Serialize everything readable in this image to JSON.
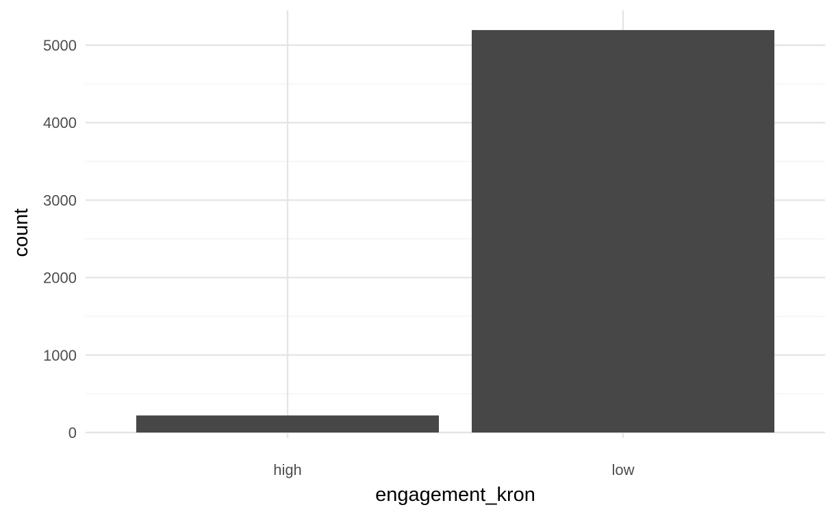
{
  "chart_data": {
    "type": "bar",
    "categories": [
      "high",
      "low"
    ],
    "values": [
      220,
      5195
    ],
    "xlabel": "engagement_kron",
    "ylabel": "count",
    "ylim": [
      0,
      5200
    ],
    "yticks": [
      0,
      1000,
      2000,
      3000,
      4000,
      5000
    ],
    "grid": true,
    "bar_color": "#474747"
  }
}
